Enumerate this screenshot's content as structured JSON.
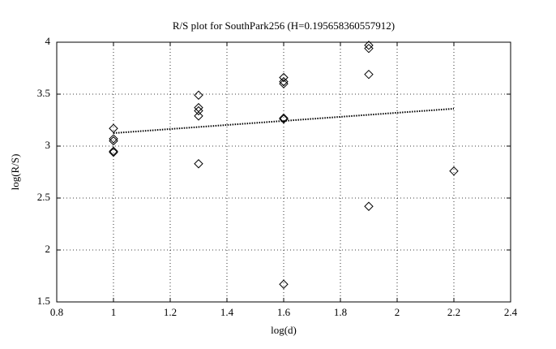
{
  "chart_data": {
    "type": "scatter",
    "title": "R/S plot for SouthPark256 (H=0.195658360557912)",
    "x_label": "log(d)",
    "y_label": "log(R/S)",
    "xlim": [
      0.8,
      2.4
    ],
    "xticks": [
      0.8,
      1,
      1.2,
      1.4,
      1.6,
      1.8,
      2,
      2.2,
      2.4
    ],
    "ylim": [
      1.5,
      4
    ],
    "yticks": [
      1.5,
      2,
      2.5,
      3,
      3.5,
      4
    ],
    "grid": true,
    "series": [
      {
        "color": "#000000",
        "marker": "diamond",
        "x": [
          1,
          1,
          1,
          1,
          1,
          1.3,
          1.3,
          1.3,
          1.3,
          1.3,
          1.6,
          1.6,
          1.6,
          1.6,
          1.6,
          1.6,
          1.9,
          1.9,
          1.9,
          1.9,
          2.2
        ],
        "values": [
          3.17,
          3.07,
          3.05,
          2.95,
          2.94,
          3.49,
          3.37,
          3.34,
          3.29,
          2.83,
          3.66,
          3.62,
          3.6,
          3.27,
          3.26,
          1.67,
          3.97,
          3.94,
          3.69,
          2.42,
          2.76
        ]
      },
      {
        "color": "#000000",
        "marker": "none",
        "line": "dotted",
        "x": [
          1,
          2.2
        ],
        "values": [
          3.125,
          3.36
        ]
      }
    ]
  }
}
